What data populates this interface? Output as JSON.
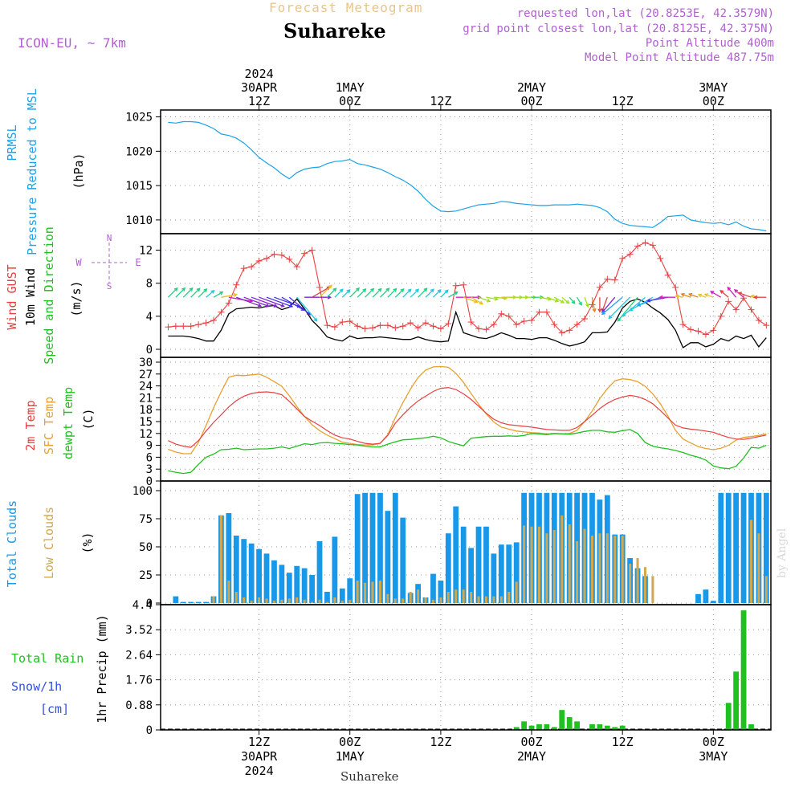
{
  "header": {
    "product": "Forecast Meteogram",
    "location": "Suhareke",
    "model": "ICON-EU, ~ 7km",
    "requested": "requested lon,lat (20.8253E, 42.3579N)",
    "grid_point": "grid point closest lon,lat (20.8125E, 42.375N)",
    "point_altitude": "Point Altitude 400m",
    "model_altitude": "Model Point Altitude 487.75m"
  },
  "footer": {
    "location": "Suhareke",
    "credit": "by Angel"
  },
  "time_axis": {
    "top_labels": [
      {
        "hour": 12,
        "lines": [
          "2024",
          "30APR",
          "12Z"
        ]
      },
      {
        "hour": 24,
        "lines": [
          "1MAY",
          "00Z"
        ]
      },
      {
        "hour": 36,
        "lines": [
          "12Z"
        ]
      },
      {
        "hour": 48,
        "lines": [
          "2MAY",
          "00Z"
        ]
      },
      {
        "hour": 60,
        "lines": [
          "12Z"
        ]
      },
      {
        "hour": 72,
        "lines": [
          "3MAY",
          "00Z"
        ]
      }
    ],
    "bottom_labels": [
      {
        "hour": 12,
        "lines": [
          "12Z",
          "30APR",
          "2024"
        ]
      },
      {
        "hour": 24,
        "lines": [
          "00Z",
          "1MAY"
        ]
      },
      {
        "hour": 36,
        "lines": [
          "12Z"
        ]
      },
      {
        "hour": 48,
        "lines": [
          "00Z",
          "2MAY"
        ]
      },
      {
        "hour": 60,
        "lines": [
          "12Z"
        ]
      },
      {
        "hour": 72,
        "lines": [
          "00Z",
          "3MAY"
        ]
      }
    ]
  },
  "panel_labels": {
    "pressure": {
      "title1": "PRMSL",
      "title2": "Pressure Reduced to MSL",
      "unit": "(hPa)"
    },
    "wind": {
      "gust": "Wind GUST",
      "wind10": "10m Wind",
      "dir": "Speed and Direction",
      "unit": "(m/s)",
      "compass_n": "N",
      "compass_s": "S",
      "compass_w": "W",
      "compass_e": "E"
    },
    "temp": {
      "t2m": "2m Temp",
      "sfc": "SFC Temp",
      "dew": "dewpt Temp",
      "unit": "(C)"
    },
    "cloud": {
      "total": "Total Clouds",
      "low": "Low Clouds",
      "unit": "(%)"
    },
    "precip": {
      "rain": "Total Rain",
      "snow": "Snow/1h",
      "snow_unit": "[cm]",
      "axis": "1hr Precip (mm)"
    }
  },
  "colors": {
    "pressure": "#1aa3e8",
    "gust": "#e84040",
    "wind": "#000000",
    "t2m": "#e84040",
    "sfc": "#e8a030",
    "dew": "#20c020",
    "total_cloud": "#1898e8",
    "low_cloud": "#d0a850",
    "rain": "#20c020",
    "snow": "#3050e0",
    "grid": "#999999",
    "purple": "#b060d0"
  },
  "chart_data": [
    {
      "type": "line",
      "name": "pressure",
      "ylim": [
        1008,
        1026
      ],
      "yticks": [
        1010,
        1015,
        1020,
        1025
      ],
      "x": [
        0,
        1,
        2,
        3,
        4,
        5,
        6,
        7,
        8,
        9,
        10,
        11,
        12,
        13,
        14,
        15,
        16,
        17,
        18,
        19,
        20,
        21,
        22,
        23,
        24,
        25,
        26,
        27,
        28,
        29,
        30,
        31,
        32,
        33,
        34,
        35,
        36,
        37,
        38,
        39,
        40,
        41,
        42,
        43,
        44,
        45,
        46,
        47,
        48,
        49,
        50,
        51,
        52,
        53,
        54,
        55,
        56,
        57,
        58,
        59,
        60,
        61,
        62,
        63,
        64,
        65,
        66,
        67,
        68,
        69,
        70,
        71,
        72,
        73,
        74,
        75,
        76,
        77,
        78,
        79
      ],
      "values": [
        1024.2,
        1024.1,
        1024.3,
        1024.3,
        1024.2,
        1023.8,
        1023.3,
        1022.5,
        1022.3,
        1021.9,
        1021.2,
        1020.2,
        1019.1,
        1018.3,
        1017.6,
        1016.7,
        1016.0,
        1016.9,
        1017.4,
        1017.6,
        1017.7,
        1018.2,
        1018.5,
        1018.6,
        1018.8,
        1018.2,
        1018.0,
        1017.7,
        1017.4,
        1016.9,
        1016.3,
        1015.8,
        1015.1,
        1014.2,
        1013.0,
        1012.0,
        1011.3,
        1011.2,
        1011.3,
        1011.6,
        1011.9,
        1012.2,
        1012.3,
        1012.4,
        1012.7,
        1012.6,
        1012.4,
        1012.3,
        1012.2,
        1012.1,
        1012.1,
        1012.2,
        1012.2,
        1012.2,
        1012.3,
        1012.2,
        1012.1,
        1011.8,
        1011.2,
        1010.1,
        1009.5,
        1009.2,
        1009.1,
        1009.0,
        1008.9,
        1009.6,
        1010.5,
        1010.6,
        1010.7,
        1010.0,
        1009.8,
        1009.6,
        1009.5,
        1009.6,
        1009.3,
        1009.7,
        1009.1,
        1008.7,
        1008.6,
        1008.4
      ]
    },
    {
      "type": "line",
      "name": "wind",
      "ylim": [
        0,
        14
      ],
      "yticks": [
        0,
        4,
        8,
        12
      ],
      "x": [
        0,
        1,
        2,
        3,
        4,
        5,
        6,
        7,
        8,
        9,
        10,
        11,
        12,
        13,
        14,
        15,
        16,
        17,
        18,
        19,
        20,
        21,
        22,
        23,
        24,
        25,
        26,
        27,
        28,
        29,
        30,
        31,
        32,
        33,
        34,
        35,
        36,
        37,
        38,
        39,
        40,
        41,
        42,
        43,
        44,
        45,
        46,
        47,
        48,
        49,
        50,
        51,
        52,
        53,
        54,
        55,
        56,
        57,
        58,
        59,
        60,
        61,
        62,
        63,
        64,
        65,
        66,
        67,
        68,
        69,
        70,
        71,
        72,
        73,
        74,
        75,
        76,
        77,
        78,
        79
      ],
      "gust": [
        2.7,
        2.8,
        2.8,
        2.8,
        3.0,
        3.2,
        3.5,
        4.5,
        5.6,
        7.8,
        9.8,
        10.0,
        10.7,
        11.0,
        11.5,
        11.4,
        10.9,
        10.0,
        11.6,
        12.0,
        7.5,
        2.9,
        2.7,
        3.3,
        3.4,
        2.8,
        2.5,
        2.6,
        2.9,
        2.9,
        2.6,
        2.8,
        3.2,
        2.6,
        3.2,
        2.8,
        2.5,
        3.1,
        7.7,
        7.8,
        3.3,
        2.5,
        2.4,
        3.0,
        4.3,
        4.0,
        3.0,
        3.4,
        3.5,
        4.5,
        4.5,
        3.0,
        2.0,
        2.3,
        3.0,
        3.7,
        5.4,
        7.5,
        8.5,
        8.4,
        11.0,
        11.5,
        12.5,
        12.9,
        12.6,
        11.0,
        9.0,
        7.5,
        3.0,
        2.4,
        2.2,
        1.8,
        2.3,
        4.0,
        5.8,
        4.8,
        6.2,
        4.8,
        3.5,
        2.9
      ],
      "speed": [
        1.6,
        1.6,
        1.6,
        1.5,
        1.3,
        1.0,
        1.0,
        2.3,
        4.3,
        4.9,
        5.0,
        5.1,
        5.0,
        5.2,
        5.3,
        4.8,
        5.1,
        6.1,
        4.9,
        3.5,
        2.6,
        1.5,
        1.2,
        1.0,
        1.6,
        1.3,
        1.4,
        1.4,
        1.5,
        1.4,
        1.3,
        1.2,
        1.2,
        1.5,
        1.2,
        1.0,
        0.9,
        1.0,
        4.5,
        2.0,
        1.7,
        1.4,
        1.3,
        1.6,
        2.0,
        1.7,
        1.3,
        1.3,
        1.2,
        1.4,
        1.4,
        1.1,
        0.7,
        0.4,
        0.6,
        0.9,
        2.0,
        2.0,
        2.1,
        3.3,
        5.0,
        5.8,
        6.1,
        5.7,
        5.0,
        4.4,
        3.6,
        2.3,
        0.2,
        0.8,
        0.8,
        0.3,
        0.6,
        1.3,
        1.0,
        1.6,
        1.3,
        1.7,
        0.3,
        1.4
      ],
      "direction": [
        45,
        45,
        45,
        45,
        45,
        50,
        60,
        80,
        100,
        110,
        110,
        110,
        110,
        110,
        110,
        120,
        130,
        140,
        90,
        60,
        45,
        45,
        45,
        45,
        45,
        45,
        45,
        45,
        45,
        45,
        45,
        45,
        45,
        45,
        45,
        45,
        45,
        60,
        90,
        110,
        120,
        110,
        100,
        95,
        90,
        90,
        90,
        90,
        90,
        100,
        110,
        120,
        130,
        140,
        150,
        160,
        170,
        180,
        200,
        220,
        230,
        225,
        220,
        230,
        240,
        250,
        260,
        270,
        280,
        290,
        290,
        290,
        290,
        300,
        310,
        320,
        310,
        290,
        280,
        270
      ]
    },
    {
      "type": "line",
      "name": "temperature",
      "ylim": [
        0,
        30
      ],
      "yticks": [
        0,
        3,
        6,
        9,
        12,
        15,
        18,
        21,
        24,
        27,
        30
      ],
      "x": [
        0,
        1,
        2,
        3,
        4,
        5,
        6,
        7,
        8,
        9,
        10,
        11,
        12,
        13,
        14,
        15,
        16,
        17,
        18,
        19,
        20,
        21,
        22,
        23,
        24,
        25,
        26,
        27,
        28,
        29,
        30,
        31,
        32,
        33,
        34,
        35,
        36,
        37,
        38,
        39,
        40,
        41,
        42,
        43,
        44,
        45,
        46,
        47,
        48,
        49,
        50,
        51,
        52,
        53,
        54,
        55,
        56,
        57,
        58,
        59,
        60,
        61,
        62,
        63,
        64,
        65,
        66,
        67,
        68,
        69,
        70,
        71,
        72,
        73,
        74,
        75,
        76,
        77,
        78,
        79
      ],
      "t2m": [
        10.2,
        9.3,
        8.8,
        8.5,
        10.2,
        12.6,
        14.8,
        16.7,
        18.7,
        20.3,
        21.4,
        22.1,
        22.4,
        22.5,
        22.3,
        21.8,
        20.1,
        18.2,
        16.3,
        15.1,
        14.0,
        12.7,
        11.6,
        10.9,
        10.6,
        10.0,
        9.5,
        9.3,
        9.5,
        11.5,
        14.6,
        16.7,
        18.6,
        20.2,
        21.4,
        22.6,
        23.4,
        23.6,
        23.1,
        22.0,
        20.6,
        18.9,
        17.1,
        15.6,
        14.7,
        14.2,
        14.0,
        13.8,
        13.6,
        13.3,
        13.0,
        12.9,
        12.8,
        12.8,
        13.5,
        15.0,
        16.6,
        18.3,
        19.6,
        20.6,
        21.2,
        21.6,
        21.3,
        20.6,
        19.5,
        17.8,
        15.9,
        14.1,
        13.4,
        13.1,
        12.9,
        12.6,
        12.3,
        11.6,
        11.0,
        10.6,
        10.5,
        10.8,
        11.2,
        11.6
      ],
      "sfc": [
        8.0,
        7.3,
        6.9,
        6.9,
        9.7,
        14.0,
        18.5,
        22.5,
        26.2,
        26.7,
        26.6,
        26.8,
        27.0,
        26.2,
        25.1,
        23.9,
        21.5,
        18.8,
        16.3,
        14.2,
        12.7,
        11.6,
        10.7,
        9.8,
        9.5,
        9.2,
        9.1,
        9.1,
        9.5,
        11.7,
        16.0,
        19.8,
        23.2,
        26.1,
        28.0,
        28.8,
        28.9,
        28.7,
        27.2,
        24.9,
        22.1,
        19.4,
        16.9,
        14.9,
        13.6,
        13.1,
        12.6,
        12.4,
        12.2,
        12.1,
        11.9,
        12.0,
        11.9,
        12.0,
        12.8,
        15.0,
        17.7,
        20.8,
        23.3,
        25.3,
        25.8,
        25.6,
        25.1,
        23.9,
        22.0,
        19.5,
        16.4,
        12.8,
        10.6,
        9.6,
        8.7,
        8.2,
        7.9,
        8.3,
        9.0,
        10.3,
        11.0,
        11.2,
        11.5,
        11.9
      ],
      "dewpt": [
        2.6,
        2.2,
        1.9,
        2.2,
        4.2,
        6.0,
        6.8,
        7.9,
        8.0,
        8.3,
        7.9,
        8.0,
        8.1,
        8.1,
        8.3,
        8.6,
        8.2,
        8.8,
        9.4,
        9.2,
        9.6,
        9.7,
        9.5,
        9.4,
        9.2,
        9.1,
        8.8,
        8.6,
        8.6,
        9.3,
        9.9,
        10.4,
        10.5,
        10.7,
        10.9,
        11.3,
        10.9,
        10.0,
        9.4,
        8.9,
        10.8,
        11.0,
        11.2,
        11.3,
        11.3,
        11.4,
        11.3,
        11.5,
        12.0,
        11.9,
        11.7,
        12.0,
        11.9,
        11.8,
        12.1,
        12.5,
        12.8,
        12.8,
        12.4,
        12.3,
        12.7,
        13.0,
        12.0,
        9.7,
        8.8,
        8.4,
        8.1,
        7.7,
        7.2,
        6.5,
        6.0,
        5.3,
        3.8,
        3.3,
        3.1,
        3.7,
        5.8,
        8.5,
        8.3,
        9.0
      ]
    },
    {
      "type": "bar",
      "name": "clouds",
      "ylim": [
        0,
        100
      ],
      "yticks": [
        0,
        25,
        50,
        75,
        100
      ],
      "x": [
        0,
        1,
        2,
        3,
        4,
        5,
        6,
        7,
        8,
        9,
        10,
        11,
        12,
        13,
        14,
        15,
        16,
        17,
        18,
        19,
        20,
        21,
        22,
        23,
        24,
        25,
        26,
        27,
        28,
        29,
        30,
        31,
        32,
        33,
        34,
        35,
        36,
        37,
        38,
        39,
        40,
        41,
        42,
        43,
        44,
        45,
        46,
        47,
        48,
        49,
        50,
        51,
        52,
        53,
        54,
        55,
        56,
        57,
        58,
        59,
        60,
        61,
        62,
        63,
        64,
        65,
        66,
        67,
        68,
        69,
        70,
        71,
        72,
        73,
        74,
        75,
        76,
        77,
        78,
        79
      ],
      "total": [
        0,
        6,
        1,
        1,
        1,
        1,
        6,
        78,
        80,
        60,
        57,
        53,
        48,
        44,
        38,
        34,
        27,
        33,
        31,
        25,
        55,
        10,
        59,
        13,
        22,
        97,
        98,
        98,
        98,
        82,
        98,
        76,
        9,
        17,
        5,
        26,
        20,
        62,
        86,
        68,
        49,
        68,
        68,
        44,
        52,
        52,
        54,
        98,
        98,
        98,
        98,
        98,
        98,
        98,
        98,
        98,
        98,
        92,
        96,
        61,
        61,
        40,
        31,
        24,
        0,
        0,
        0,
        0,
        0,
        0,
        8,
        12,
        2,
        98,
        98,
        98,
        98,
        98,
        98,
        98
      ],
      "low": [
        0,
        0,
        0,
        0,
        0,
        0,
        6,
        78,
        20,
        10,
        5,
        2,
        5,
        4,
        2,
        3,
        4,
        5,
        3,
        1,
        3,
        1,
        5,
        2,
        3,
        20,
        18,
        19,
        20,
        8,
        4,
        4,
        10,
        12,
        5,
        3,
        5,
        10,
        12,
        12,
        10,
        6,
        6,
        6,
        6,
        10,
        19,
        69,
        68,
        68,
        62,
        65,
        78,
        70,
        55,
        66,
        60,
        62,
        62,
        60,
        60,
        35,
        40,
        32,
        24,
        0,
        0,
        0,
        0,
        0,
        0,
        0,
        0,
        0,
        0,
        0,
        0,
        74,
        62,
        24
      ]
    },
    {
      "type": "bar",
      "name": "precip",
      "ylim": [
        0,
        4.4
      ],
      "yticks": [
        0,
        0.88,
        1.76,
        2.64,
        3.52,
        4.4
      ],
      "x": [
        0,
        1,
        2,
        3,
        4,
        5,
        6,
        7,
        8,
        9,
        10,
        11,
        12,
        13,
        14,
        15,
        16,
        17,
        18,
        19,
        20,
        21,
        22,
        23,
        24,
        25,
        26,
        27,
        28,
        29,
        30,
        31,
        32,
        33,
        34,
        35,
        36,
        37,
        38,
        39,
        40,
        41,
        42,
        43,
        44,
        45,
        46,
        47,
        48,
        49,
        50,
        51,
        52,
        53,
        54,
        55,
        56,
        57,
        58,
        59,
        60,
        61,
        62,
        63,
        64,
        65,
        66,
        67,
        68,
        69,
        70,
        71,
        72,
        73,
        74,
        75,
        76,
        77,
        78,
        79
      ],
      "rain": [
        0,
        0,
        0,
        0,
        0,
        0,
        0,
        0,
        0,
        0,
        0,
        0,
        0,
        0,
        0,
        0,
        0,
        0,
        0,
        0,
        0,
        0,
        0,
        0,
        0,
        0,
        0,
        0,
        0,
        0,
        0,
        0,
        0,
        0,
        0,
        0,
        0,
        0,
        0,
        0,
        0,
        0,
        0,
        0,
        0,
        0,
        0.1,
        0.3,
        0.15,
        0.2,
        0.2,
        0.1,
        0.7,
        0.45,
        0.3,
        0,
        0.2,
        0.2,
        0.15,
        0.1,
        0.15,
        0,
        0,
        0,
        0,
        0,
        0,
        0,
        0,
        0,
        0,
        0,
        0,
        0,
        0.95,
        2.05,
        4.2,
        0.2,
        0,
        0
      ],
      "snow": []
    }
  ]
}
